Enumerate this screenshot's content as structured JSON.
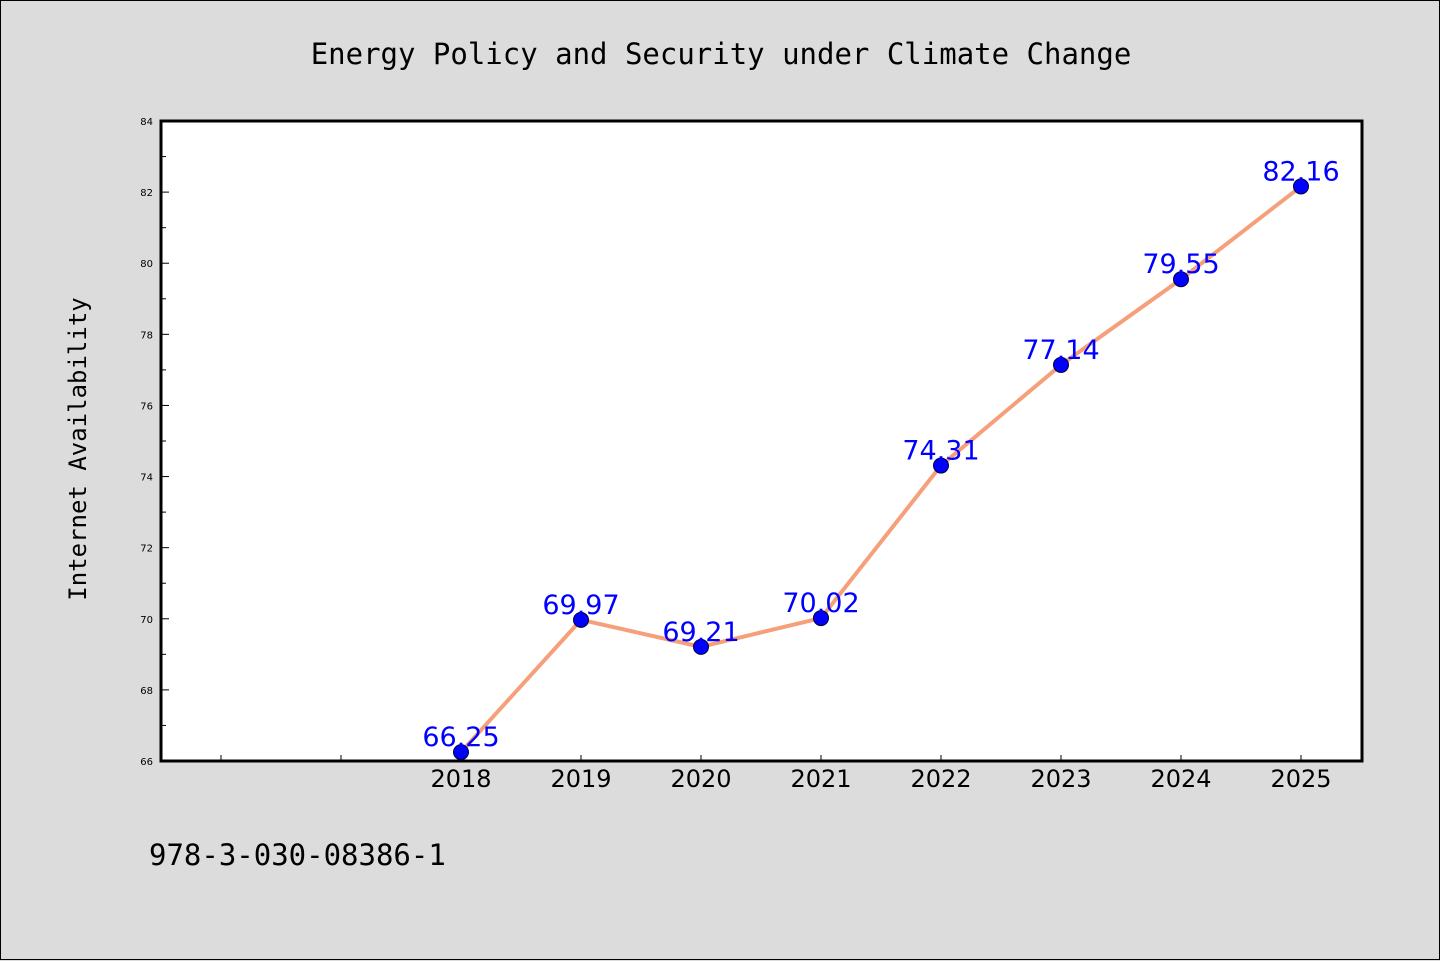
{
  "chart_data": {
    "type": "line",
    "title": "Energy Policy and Security under Climate Change",
    "xlabel": "",
    "ylabel": "Internet Availability",
    "x": [
      "2018",
      "2019",
      "2020",
      "2021",
      "2022",
      "2023",
      "2024",
      "2025"
    ],
    "series": [
      {
        "values": [
          66.25,
          69.97,
          69.21,
          70.02,
          74.31,
          77.14,
          79.55,
          82.16
        ],
        "data_labels": [
          "66.25",
          "69.97",
          "69.21",
          "70.02",
          "74.31",
          "77.14",
          "79.55",
          "82.16"
        ]
      }
    ],
    "ylim": [
      66,
      84
    ],
    "yticks": [
      "66",
      "68",
      "70",
      "72",
      "74",
      "76",
      "78",
      "80",
      "82",
      "84"
    ],
    "grid": false,
    "legend": "none",
    "colors": {
      "line": "#f5a07a",
      "marker": "#0000ff",
      "label": "#0000ff",
      "figure_bg": "#dcdcdc",
      "plot_bg": "#ffffff"
    }
  },
  "footer": {
    "isbn": "978-3-030-08386-1"
  }
}
